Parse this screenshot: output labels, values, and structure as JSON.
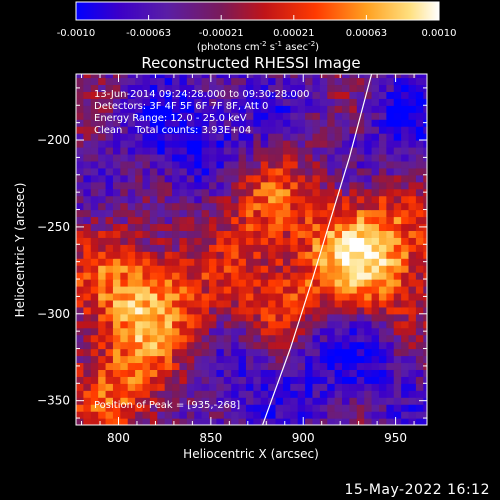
{
  "colorbar": {
    "ticks": [
      "-0.0010",
      "-0.00063",
      "-0.00021",
      "0.00021",
      "0.00063",
      "0.0010"
    ],
    "units_text": "(photons cm",
    "units_exp1": "-2",
    "units_mid": " s",
    "units_exp2": "-1",
    "units_end": " asec",
    "units_exp3": "-2",
    "units_close": ")"
  },
  "chart_data": {
    "type": "heatmap",
    "title": "Reconstructed RHESSI Image",
    "xlabel": "Heliocentric X (arcsec)",
    "ylabel": "Heliocentric Y (arcsec)",
    "xlim": [
      777,
      967
    ],
    "ylim": [
      -364,
      -162
    ],
    "xticks": [
      800,
      850,
      900,
      950
    ],
    "yticks": [
      -200,
      -250,
      -300,
      -350
    ],
    "ytick_labels": [
      "−200",
      "−250",
      "−300",
      "−350"
    ],
    "color_range": [
      -0.001,
      0.001
    ],
    "colormap": [
      "#0000ff",
      "#3c00c8",
      "#5a1ea6",
      "#7a1a5a",
      "#c01418",
      "#ff3a00",
      "#ffa020",
      "#ffe080",
      "#ffffff"
    ],
    "sources": [
      {
        "x": 935,
        "y": -268,
        "amplitude": 1.0,
        "sigma": 26
      },
      {
        "x": 812,
        "y": -292,
        "amplitude": 0.8,
        "sigma": 24
      },
      {
        "x": 872,
        "y": -232,
        "amplitude": 0.6,
        "sigma": 20
      },
      {
        "x": 805,
        "y": -345,
        "amplitude": 0.5,
        "sigma": 20
      },
      {
        "x": 885,
        "y": -290,
        "amplitude": 0.45,
        "sigma": 18
      },
      {
        "x": 845,
        "y": -200,
        "amplitude": -0.5,
        "sigma": 30
      },
      {
        "x": 925,
        "y": -320,
        "amplitude": -0.45,
        "sigma": 28
      },
      {
        "x": 860,
        "y": -350,
        "amplitude": -0.3,
        "sigma": 22
      },
      {
        "x": 960,
        "y": -195,
        "amplitude": -0.4,
        "sigma": 24
      }
    ],
    "limb": {
      "description_points": [
        [
          878,
          -364
        ],
        [
          893,
          -320
        ],
        [
          905,
          -280
        ],
        [
          915,
          -245
        ],
        [
          925,
          -210
        ],
        [
          937,
          -162
        ]
      ]
    },
    "annotations": [
      "13-Jun-2014 09:24:28.000 to 09:30:28.000",
      "Detectors: 3F 4F 5F 6F 7F 8F, Att 0",
      "Energy Range: 12.0 - 25.0 keV",
      "Clean    Total counts: 3.93E+04"
    ],
    "peak_label": "Position of Peak = [935,-268]",
    "peak": [
      935,
      -268
    ]
  },
  "footer_date": "15-May-2022 16:12"
}
